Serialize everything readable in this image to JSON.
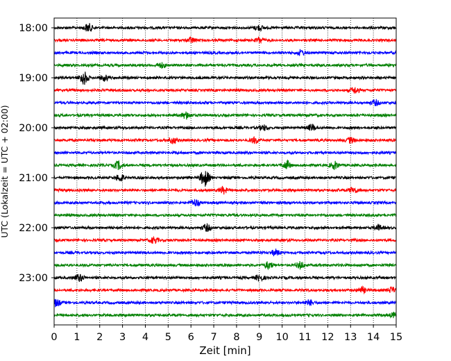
{
  "chart_data": {
    "type": "line",
    "title": "",
    "xlabel": "Zeit  [min]",
    "ylabel": "UTC (Lokalzeit = UTC + 02:00)",
    "xlim": [
      0,
      15
    ],
    "x_ticks": [
      0,
      1,
      2,
      3,
      4,
      5,
      6,
      7,
      8,
      9,
      10,
      11,
      12,
      13,
      14,
      15
    ],
    "x_tick_labels": [
      "0",
      "1",
      "2",
      "3",
      "4",
      "5",
      "6",
      "7",
      "8",
      "9",
      "10",
      "11",
      "12",
      "13",
      "14",
      "15"
    ],
    "y_tick_labels": [
      "18:00",
      "19:00",
      "20:00",
      "21:00",
      "22:00",
      "23:00"
    ],
    "y_tick_trace_index": [
      0,
      4,
      8,
      12,
      16,
      20
    ],
    "trace_minutes": 15,
    "grid": "vertical dotted",
    "legend": "none",
    "color_cycle": [
      "#000000",
      "#ff0000",
      "#0000ff",
      "#008000"
    ],
    "traces": [
      {
        "start": "18:00",
        "color": "#000000"
      },
      {
        "start": "18:15",
        "color": "#ff0000"
      },
      {
        "start": "18:30",
        "color": "#0000ff"
      },
      {
        "start": "18:45",
        "color": "#008000"
      },
      {
        "start": "19:00",
        "color": "#000000"
      },
      {
        "start": "19:15",
        "color": "#ff0000"
      },
      {
        "start": "19:30",
        "color": "#0000ff"
      },
      {
        "start": "19:45",
        "color": "#008000"
      },
      {
        "start": "20:00",
        "color": "#000000"
      },
      {
        "start": "20:15",
        "color": "#ff0000"
      },
      {
        "start": "20:30",
        "color": "#0000ff"
      },
      {
        "start": "20:45",
        "color": "#008000"
      },
      {
        "start": "21:00",
        "color": "#000000"
      },
      {
        "start": "21:15",
        "color": "#ff0000"
      },
      {
        "start": "21:30",
        "color": "#0000ff"
      },
      {
        "start": "21:45",
        "color": "#008000"
      },
      {
        "start": "22:00",
        "color": "#000000"
      },
      {
        "start": "22:15",
        "color": "#ff0000"
      },
      {
        "start": "22:30",
        "color": "#0000ff"
      },
      {
        "start": "22:45",
        "color": "#008000"
      },
      {
        "start": "23:00",
        "color": "#000000"
      },
      {
        "start": "23:15",
        "color": "#ff0000"
      },
      {
        "start": "23:30",
        "color": "#0000ff"
      },
      {
        "start": "23:45",
        "color": "#008000"
      }
    ],
    "events": [
      {
        "trace": 0,
        "minute": 1.5,
        "strength": 0.6
      },
      {
        "trace": 0,
        "minute": 9.0,
        "strength": 0.4
      },
      {
        "trace": 1,
        "minute": 6.0,
        "strength": 0.4
      },
      {
        "trace": 1,
        "minute": 9.0,
        "strength": 0.4
      },
      {
        "trace": 2,
        "minute": 10.8,
        "strength": 0.4
      },
      {
        "trace": 3,
        "minute": 4.7,
        "strength": 0.35
      },
      {
        "trace": 4,
        "minute": 1.3,
        "strength": 1.0
      },
      {
        "trace": 4,
        "minute": 2.2,
        "strength": 0.4
      },
      {
        "trace": 5,
        "minute": 13.2,
        "strength": 0.45
      },
      {
        "trace": 6,
        "minute": 14.1,
        "strength": 0.4
      },
      {
        "trace": 7,
        "minute": 5.8,
        "strength": 0.55
      },
      {
        "trace": 8,
        "minute": 11.3,
        "strength": 0.45
      },
      {
        "trace": 8,
        "minute": 9.2,
        "strength": 0.35
      },
      {
        "trace": 9,
        "minute": 5.2,
        "strength": 0.5
      },
      {
        "trace": 9,
        "minute": 8.8,
        "strength": 0.45
      },
      {
        "trace": 9,
        "minute": 13.0,
        "strength": 0.4
      },
      {
        "trace": 11,
        "minute": 2.8,
        "strength": 0.6
      },
      {
        "trace": 11,
        "minute": 10.2,
        "strength": 0.6
      },
      {
        "trace": 11,
        "minute": 12.3,
        "strength": 0.55
      },
      {
        "trace": 12,
        "minute": 6.6,
        "strength": 1.3
      },
      {
        "trace": 12,
        "minute": 2.9,
        "strength": 0.5
      },
      {
        "trace": 13,
        "minute": 7.4,
        "strength": 0.5
      },
      {
        "trace": 13,
        "minute": 13.1,
        "strength": 0.45
      },
      {
        "trace": 14,
        "minute": 6.2,
        "strength": 0.5
      },
      {
        "trace": 16,
        "minute": 6.7,
        "strength": 0.5
      },
      {
        "trace": 16,
        "minute": 14.2,
        "strength": 0.4
      },
      {
        "trace": 17,
        "minute": 4.4,
        "strength": 0.45
      },
      {
        "trace": 18,
        "minute": 9.7,
        "strength": 0.45
      },
      {
        "trace": 19,
        "minute": 9.4,
        "strength": 0.5
      },
      {
        "trace": 19,
        "minute": 10.8,
        "strength": 0.5
      },
      {
        "trace": 20,
        "minute": 1.1,
        "strength": 0.55
      },
      {
        "trace": 20,
        "minute": 9.0,
        "strength": 0.45
      },
      {
        "trace": 21,
        "minute": 13.5,
        "strength": 0.45
      },
      {
        "trace": 21,
        "minute": 14.8,
        "strength": 0.4
      },
      {
        "trace": 22,
        "minute": 0.1,
        "strength": 0.55
      },
      {
        "trace": 22,
        "minute": 11.2,
        "strength": 0.4
      },
      {
        "trace": 23,
        "minute": 14.9,
        "strength": 0.4
      }
    ]
  }
}
